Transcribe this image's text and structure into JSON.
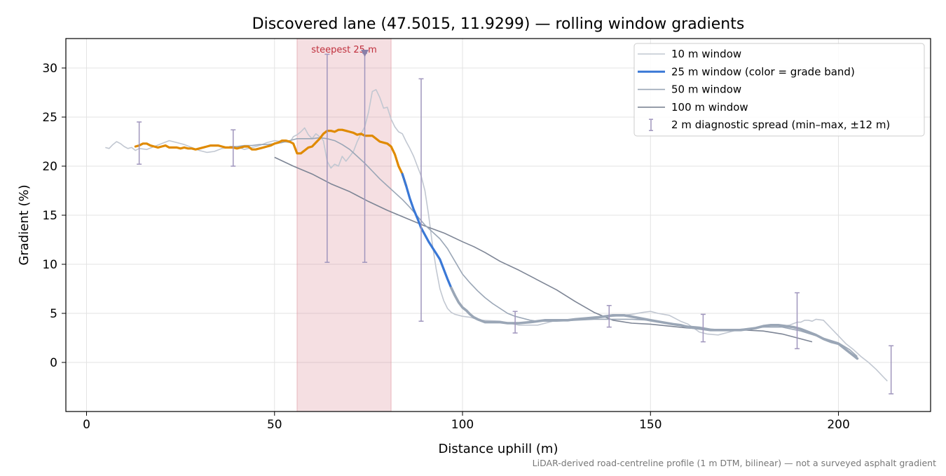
{
  "chart_data": {
    "type": "line",
    "title": "Discovered lane (47.5015, 11.9299) — rolling window gradients",
    "xlabel": "Distance uphill (m)",
    "ylabel": "Gradient (%)",
    "footnote": "LiDAR-derived road-centreline profile (1 m DTM, bilinear) — not a surveyed asphalt gradient",
    "xlim": [
      -5.5,
      224.5
    ],
    "ylim": [
      -5,
      33
    ],
    "x_ticks": [
      0,
      50,
      100,
      150,
      200
    ],
    "y_ticks": [
      0,
      5,
      10,
      15,
      20,
      25,
      30
    ],
    "grid": true,
    "legend_position": "top-right",
    "highlight_band": {
      "x_start": 56,
      "x_end": 81,
      "label": "steepest 25 m",
      "color": "#d9808b"
    },
    "steepest_marker": {
      "x": 74,
      "y": 31.5
    },
    "colors": {
      "w10": "#c1c7d1",
      "w50": "#9aa6b6",
      "w100": "#7d8595",
      "grade_steep": "#e08a00",
      "grade_mid": "#3a78d6",
      "grade_low": "#9aa6b6",
      "errorbar": "#a096bd",
      "highlight_text": "#c0303d"
    },
    "series": [
      {
        "name": "10 m window",
        "x": [
          5,
          6,
          7,
          8,
          9,
          10,
          11,
          12,
          13,
          14,
          16,
          18,
          20,
          22,
          24,
          26,
          28,
          30,
          32,
          34,
          36,
          38,
          40,
          42,
          44,
          46,
          48,
          50,
          52,
          54,
          55,
          56,
          57,
          58,
          59,
          60,
          61,
          62,
          63,
          64,
          65,
          66,
          67,
          68,
          69,
          70,
          71,
          72,
          73,
          74,
          75,
          76,
          77,
          78,
          79,
          80,
          81,
          82,
          83,
          84,
          85,
          86,
          87,
          88,
          89,
          90,
          91,
          92,
          93,
          94,
          95,
          96,
          97,
          98,
          100,
          102,
          105,
          110,
          115,
          120,
          125,
          130,
          135,
          140,
          145,
          148,
          150,
          152,
          155,
          158,
          160,
          163,
          165,
          168,
          170,
          173,
          175,
          177,
          180,
          182,
          185,
          187,
          189,
          190,
          191,
          192,
          193,
          194,
          196,
          198,
          200,
          202,
          204,
          206,
          208,
          210,
          212,
          213
        ],
        "y": [
          21.9,
          21.8,
          22.2,
          22.5,
          22.3,
          22.0,
          21.8,
          21.9,
          21.6,
          21.8,
          21.7,
          22.0,
          22.3,
          22.6,
          22.4,
          22.2,
          21.9,
          21.6,
          21.4,
          21.5,
          21.8,
          21.9,
          22.0,
          21.7,
          21.9,
          22.1,
          22.4,
          22.6,
          22.5,
          22.4,
          23.0,
          23.2,
          23.5,
          23.9,
          23.2,
          22.8,
          23.3,
          23.0,
          22.6,
          20.5,
          19.8,
          20.2,
          20.0,
          21.0,
          20.5,
          21.0,
          21.5,
          22.5,
          23.3,
          24.0,
          25.5,
          27.6,
          27.8,
          27.0,
          25.9,
          26.0,
          24.8,
          24.0,
          23.5,
          23.3,
          22.5,
          21.8,
          21.0,
          20.0,
          19.0,
          17.5,
          15.0,
          12.0,
          9.5,
          7.5,
          6.3,
          5.5,
          5.1,
          4.9,
          4.7,
          4.6,
          4.3,
          4.2,
          3.8,
          3.8,
          4.3,
          4.4,
          4.5,
          4.7,
          4.9,
          5.1,
          5.2,
          5.0,
          4.8,
          4.2,
          3.9,
          3.1,
          2.9,
          2.8,
          3.0,
          3.3,
          3.4,
          3.5,
          3.6,
          3.8,
          3.7,
          3.8,
          4.1,
          4.1,
          4.3,
          4.3,
          4.2,
          4.4,
          4.3,
          3.5,
          2.7,
          1.9,
          1.3,
          0.6,
          0.0,
          -0.7,
          -1.5,
          -1.9
        ]
      },
      {
        "name": "25 m window (color = grade band)",
        "x": [
          13,
          14,
          15,
          16,
          17,
          18,
          19,
          20,
          21,
          22,
          23,
          24,
          25,
          26,
          27,
          28,
          29,
          30,
          31,
          32,
          33,
          34,
          35,
          36,
          37,
          38,
          39,
          40,
          41,
          42,
          43,
          44,
          45,
          46,
          47,
          48,
          49,
          50,
          51,
          52,
          53,
          54,
          55,
          56,
          57,
          58,
          59,
          60,
          61,
          62,
          63,
          64,
          65,
          66,
          67,
          68,
          69,
          70,
          71,
          72,
          73,
          74,
          75,
          76,
          77,
          78,
          79,
          80,
          81,
          82,
          83,
          84,
          85,
          86,
          87,
          88,
          89,
          90,
          91,
          92,
          93,
          94,
          95,
          96,
          97,
          98,
          99,
          100,
          101,
          102,
          103,
          104,
          106,
          108,
          110,
          112,
          115,
          118,
          120,
          122,
          125,
          128,
          130,
          133,
          136,
          140,
          143,
          146,
          150,
          153,
          156,
          158,
          160,
          162,
          164,
          166,
          168,
          170,
          172,
          174,
          176,
          178,
          180,
          182,
          184,
          186,
          188,
          190,
          192,
          194,
          196,
          198,
          200,
          201,
          202,
          203,
          204,
          205
        ],
        "y": [
          22.0,
          22.1,
          22.3,
          22.3,
          22.1,
          22.0,
          21.9,
          22.0,
          22.1,
          21.9,
          21.9,
          21.9,
          21.8,
          21.9,
          21.8,
          21.8,
          21.7,
          21.8,
          21.9,
          22.0,
          22.1,
          22.1,
          22.1,
          22.0,
          21.9,
          21.9,
          21.9,
          21.8,
          21.9,
          22.0,
          22.0,
          21.7,
          21.7,
          21.8,
          21.9,
          22.0,
          22.1,
          22.3,
          22.4,
          22.6,
          22.6,
          22.5,
          22.3,
          21.3,
          21.3,
          21.6,
          21.9,
          22.0,
          22.4,
          22.8,
          23.3,
          23.6,
          23.6,
          23.5,
          23.7,
          23.7,
          23.6,
          23.5,
          23.4,
          23.2,
          23.3,
          23.1,
          23.1,
          23.1,
          22.8,
          22.5,
          22.4,
          22.3,
          22.0,
          21.2,
          20.0,
          19.2,
          18.0,
          16.7,
          15.6,
          14.7,
          13.7,
          13.0,
          12.3,
          11.7,
          11.1,
          10.5,
          9.5,
          8.5,
          7.6,
          6.8,
          6.1,
          5.6,
          5.3,
          4.9,
          4.6,
          4.4,
          4.1,
          4.1,
          4.1,
          4.0,
          4.0,
          4.1,
          4.2,
          4.3,
          4.3,
          4.3,
          4.4,
          4.5,
          4.6,
          4.8,
          4.8,
          4.6,
          4.3,
          4.1,
          3.9,
          3.8,
          3.6,
          3.5,
          3.4,
          3.3,
          3.3,
          3.3,
          3.3,
          3.3,
          3.4,
          3.5,
          3.7,
          3.8,
          3.8,
          3.7,
          3.6,
          3.4,
          3.1,
          2.8,
          2.4,
          2.1,
          1.9,
          1.6,
          1.3,
          1.0,
          0.7,
          0.4
        ]
      },
      {
        "name": "50 m window",
        "x": [
          38,
          40,
          42,
          44,
          46,
          48,
          50,
          52,
          54,
          56,
          58,
          60,
          62,
          64,
          66,
          68,
          70,
          72,
          74,
          76,
          78,
          80,
          82,
          84,
          86,
          88,
          90,
          92,
          94,
          96,
          98,
          100,
          102,
          104,
          106,
          108,
          110,
          112,
          114,
          116,
          118,
          120,
          125,
          130,
          135,
          140,
          145,
          150,
          155,
          160,
          163,
          166,
          170,
          175,
          180,
          185,
          190,
          195,
          200,
          203,
          205
        ],
        "y": [
          22.0,
          22.0,
          22.1,
          22.1,
          22.2,
          22.2,
          22.3,
          22.4,
          22.6,
          22.8,
          22.8,
          22.8,
          22.9,
          22.8,
          22.6,
          22.2,
          21.7,
          21.0,
          20.3,
          19.5,
          18.7,
          18.0,
          17.3,
          16.6,
          15.8,
          14.9,
          14.0,
          13.3,
          12.6,
          11.6,
          10.3,
          9.0,
          8.1,
          7.3,
          6.6,
          6.0,
          5.5,
          5.0,
          4.7,
          4.5,
          4.3,
          4.2,
          4.2,
          4.3,
          4.4,
          4.4,
          4.4,
          4.3,
          4.0,
          3.7,
          3.6,
          3.4,
          3.3,
          3.4,
          3.6,
          3.6,
          3.2,
          2.6,
          2.0,
          1.3,
          0.6
        ]
      },
      {
        "name": "100 m window",
        "x": [
          50,
          55,
          60,
          65,
          70,
          75,
          80,
          85,
          90,
          95,
          100,
          103,
          106,
          110,
          115,
          120,
          125,
          130,
          135,
          140,
          145,
          150,
          155,
          160,
          165,
          170,
          175,
          180,
          185,
          190,
          193
        ],
        "y": [
          20.9,
          20.0,
          19.2,
          18.2,
          17.4,
          16.4,
          15.5,
          14.7,
          13.9,
          13.2,
          12.3,
          11.8,
          11.2,
          10.3,
          9.4,
          8.4,
          7.4,
          6.2,
          5.1,
          4.3,
          4.0,
          3.9,
          3.7,
          3.5,
          3.4,
          3.3,
          3.3,
          3.2,
          2.9,
          2.4,
          2.1
        ]
      }
    ],
    "grade_band_breaks": [
      {
        "x_end": 84.5,
        "band": "steep"
      },
      {
        "x_end": 97,
        "band": "mid"
      },
      {
        "x_end": 205,
        "band": "low"
      }
    ],
    "diagnostic_spread": {
      "name": "2 m diagnostic spread (min–max, ±12 m)",
      "points": [
        {
          "x": 14,
          "min": 20.2,
          "max": 24.5
        },
        {
          "x": 39,
          "min": 20.0,
          "max": 23.7
        },
        {
          "x": 64,
          "min": 10.2,
          "max": 31.4
        },
        {
          "x": 74,
          "min": 10.2,
          "max": 31.5
        },
        {
          "x": 89,
          "min": 4.2,
          "max": 28.9
        },
        {
          "x": 114,
          "min": 3.0,
          "max": 5.2
        },
        {
          "x": 139,
          "min": 3.6,
          "max": 5.8
        },
        {
          "x": 164,
          "min": 2.1,
          "max": 4.9
        },
        {
          "x": 189,
          "min": 1.4,
          "max": 7.1
        },
        {
          "x": 214,
          "min": -3.2,
          "max": 1.7
        }
      ]
    }
  }
}
